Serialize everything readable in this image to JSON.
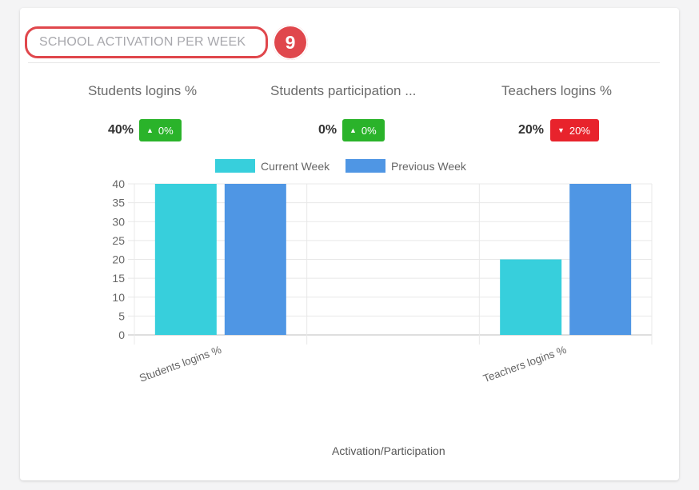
{
  "card": {
    "title": "SCHOOL ACTIVATION PER WEEK",
    "step_number": "9"
  },
  "metrics": [
    {
      "label": "Students logins %",
      "value": "40%",
      "change": "0%",
      "direction": "up"
    },
    {
      "label": "Students participation ...",
      "value": "0%",
      "change": "0%",
      "direction": "up"
    },
    {
      "label": "Teachers logins %",
      "value": "20%",
      "change": "20%",
      "direction": "down"
    }
  ],
  "colors": {
    "current_week": "#37cfdc",
    "previous_week": "#4f96e4",
    "up": "#2ab32a",
    "down": "#e8232c",
    "highlight": "#e0474c"
  },
  "chart_data": {
    "type": "bar",
    "categories": [
      "Students logins %",
      "Students participation %",
      "Teachers logins %"
    ],
    "x_tick_labels": [
      "Students logins %",
      "",
      "Teachers logins %"
    ],
    "series": [
      {
        "name": "Current Week",
        "values": [
          40,
          0,
          20
        ]
      },
      {
        "name": "Previous Week",
        "values": [
          40,
          0,
          40
        ]
      }
    ],
    "ylim": [
      0,
      40
    ],
    "yticks": [
      0,
      5,
      10,
      15,
      20,
      25,
      30,
      35,
      40
    ],
    "xlabel": "Activation/Participation",
    "ylabel": "",
    "legend": "top-center",
    "grid": true
  }
}
